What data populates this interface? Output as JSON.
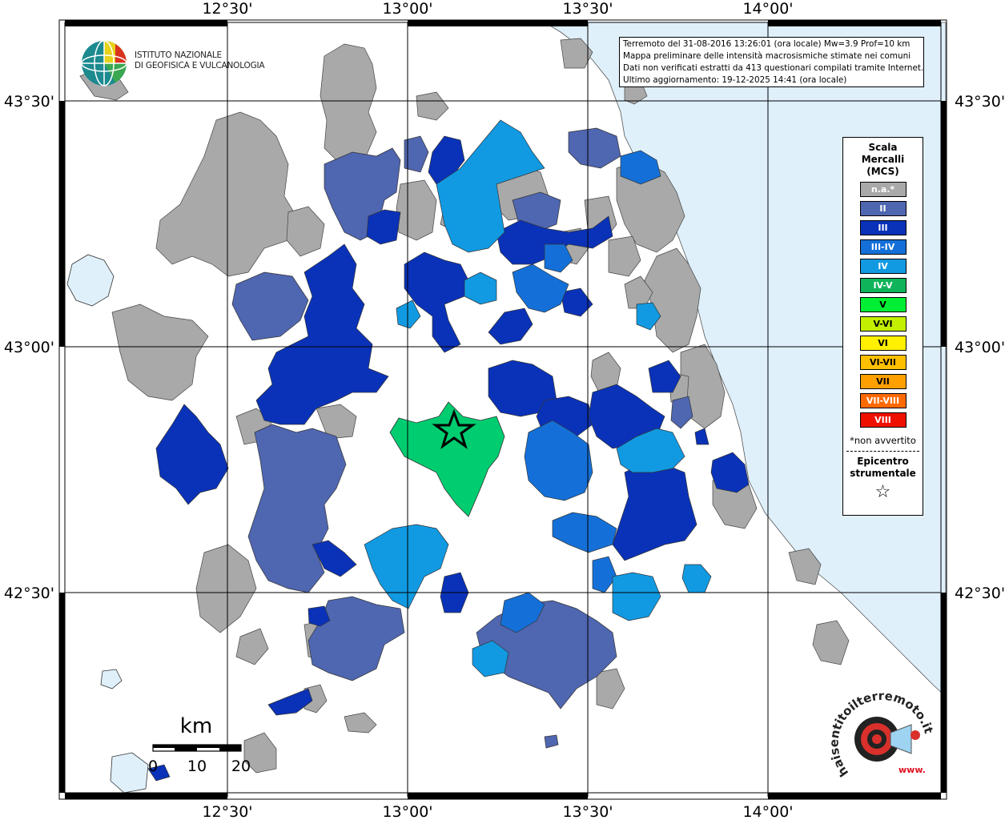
{
  "map": {
    "top_labels": [
      "12°30'",
      "13°00'",
      "13°30'",
      "14°00'"
    ],
    "bottom_labels": [
      "12°30'",
      "13°00'",
      "13°30'",
      "14°00'"
    ],
    "left_labels": [
      "43°30'",
      "43°00'",
      "42°30'"
    ],
    "right_labels": [
      "43°30'",
      "43°00'",
      "42°30'"
    ],
    "colors": {
      "sea": "#dff0fb",
      "na": "#a9a9a9",
      "land": "#ffffff"
    }
  },
  "info": {
    "line1": "Terremoto del 31-08-2016 13:26:01 (ora locale) Mw=3.9 Prof=10 km",
    "line2": "Mappa preliminare delle intensità macrosismiche stimate nei comuni",
    "line3": "Dati non verificati estratti da 413 questionari compilati tramite Internet.",
    "line4": "Ultimo aggiornamento: 19-12-2025 14:41 (ora locale)"
  },
  "logo": {
    "line1": "ISTITUTO NAZIONALE",
    "line2": "DI GEOFISICA E VULCANOLOGIA"
  },
  "legend": {
    "title1": "Scala",
    "title2": "Mercalli",
    "title3": "(MCS)",
    "items": [
      {
        "label": "n.a.*",
        "color": "#a9a9a9"
      },
      {
        "label": "II",
        "color": "#4f66b0"
      },
      {
        "label": "III",
        "color": "#0a32b8"
      },
      {
        "label": "III-IV",
        "color": "#1470d8"
      },
      {
        "label": "IV",
        "color": "#119ae2"
      },
      {
        "label": "IV-V",
        "color": "#0fb45a"
      },
      {
        "label": "V",
        "color": "#00ee33"
      },
      {
        "label": "V-VI",
        "color": "#c2f000"
      },
      {
        "label": "VI",
        "color": "#fff000"
      },
      {
        "label": "VI-VII",
        "color": "#ffc000"
      },
      {
        "label": "VII",
        "color": "#ffa000"
      },
      {
        "label": "VII-VIII",
        "color": "#ff6a00"
      },
      {
        "label": "VIII",
        "color": "#ee1100"
      }
    ],
    "note": "*non avvertito",
    "epicenter1": "Epicentro",
    "epicenter2": "strumentale",
    "star": "☆"
  },
  "scalebar": {
    "unit": "km",
    "ticks": [
      "0",
      "10",
      "20"
    ]
  },
  "hslogo": {
    "text": "haisentitoilterremoto.it",
    "url": "www."
  }
}
